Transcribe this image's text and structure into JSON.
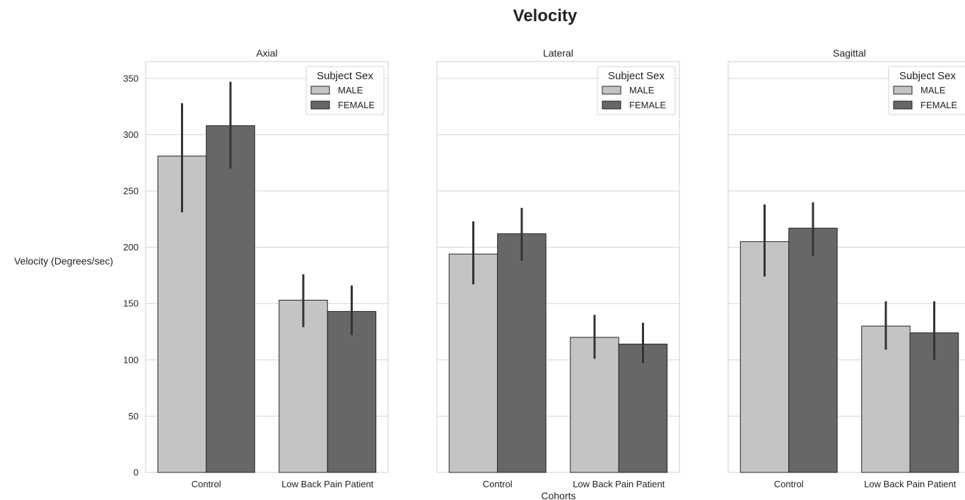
{
  "chart_data": {
    "type": "bar",
    "title": "Velocity",
    "xlabel": "Cohorts",
    "ylabel": "Velocity (Degrees/sec)",
    "ylim": [
      0,
      365
    ],
    "yticks": [
      0,
      50,
      100,
      150,
      200,
      250,
      300,
      350
    ],
    "grid": true,
    "categories": [
      "Control",
      "Low Back Pain Patient"
    ],
    "legend": {
      "title": "Subject Sex",
      "placement": "top-right",
      "entries": [
        "MALE",
        "FEMALE"
      ]
    },
    "colors": {
      "MALE": "#c4c4c4",
      "FEMALE": "#676767",
      "edge": "#222222",
      "error": "#333333"
    },
    "panels": [
      {
        "title": "Axial",
        "series": [
          {
            "name": "MALE",
            "values": [
              281,
              153
            ],
            "error_low": [
              231,
              129
            ],
            "error_high": [
              328,
              176
            ]
          },
          {
            "name": "FEMALE",
            "values": [
              308,
              143
            ],
            "error_low": [
              270,
              122
            ],
            "error_high": [
              347,
              166
            ]
          }
        ]
      },
      {
        "title": "Lateral",
        "series": [
          {
            "name": "MALE",
            "values": [
              194,
              120
            ],
            "error_low": [
              167,
              101
            ],
            "error_high": [
              223,
              140
            ]
          },
          {
            "name": "FEMALE",
            "values": [
              212,
              114
            ],
            "error_low": [
              188,
              97
            ],
            "error_high": [
              235,
              133
            ]
          }
        ]
      },
      {
        "title": "Sagittal",
        "series": [
          {
            "name": "MALE",
            "values": [
              205,
              130
            ],
            "error_low": [
              174,
              109
            ],
            "error_high": [
              238,
              152
            ]
          },
          {
            "name": "FEMALE",
            "values": [
              217,
              124
            ],
            "error_low": [
              192,
              100
            ],
            "error_high": [
              240,
              152
            ]
          }
        ]
      }
    ]
  }
}
